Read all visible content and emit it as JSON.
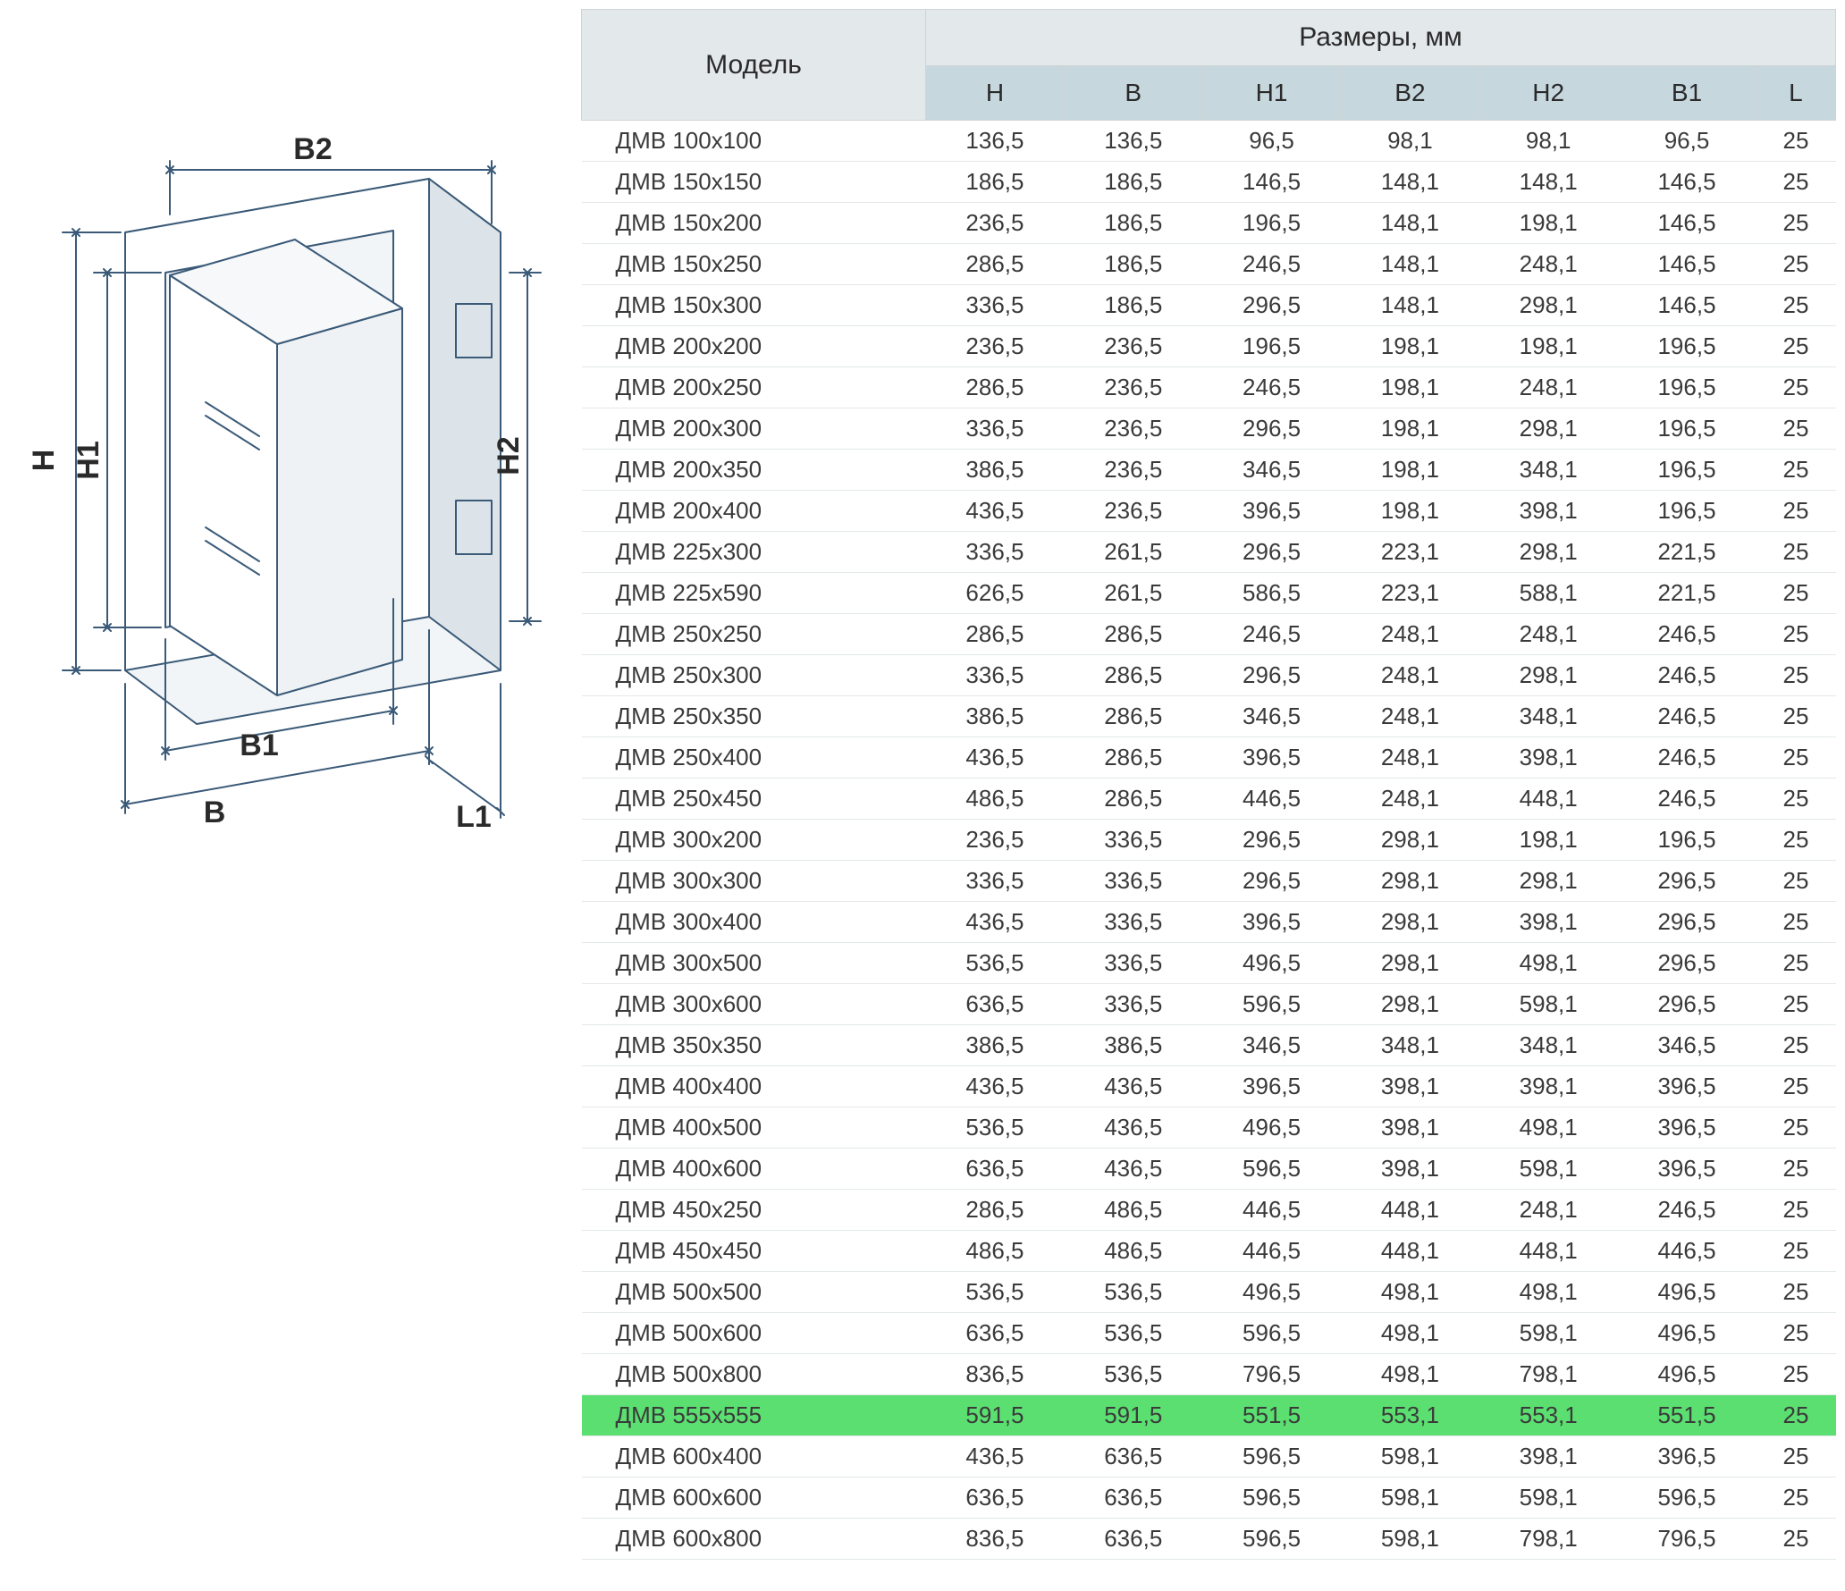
{
  "table": {
    "header_model": "Модель",
    "header_dims": "Размеры, мм",
    "columns": [
      "H",
      "B",
      "H1",
      "B2",
      "H2",
      "B1",
      "L"
    ],
    "header_bg": "#e3e8ea",
    "subheader_bg": "#c6d7de",
    "row_border": "#e3e8ea",
    "highlight_bg": "#5bdf71",
    "text_color": "#3a3a3a",
    "body_fontsize": 26,
    "header_fontsize": 30,
    "highlight_row_index": 31,
    "rows": [
      {
        "m": "ДМВ 100х100",
        "v": [
          "136,5",
          "136,5",
          "96,5",
          "98,1",
          "98,1",
          "96,5",
          "25"
        ]
      },
      {
        "m": "ДМВ 150х150",
        "v": [
          "186,5",
          "186,5",
          "146,5",
          "148,1",
          "148,1",
          "146,5",
          "25"
        ]
      },
      {
        "m": "ДМВ 150х200",
        "v": [
          "236,5",
          "186,5",
          "196,5",
          "148,1",
          "198,1",
          "146,5",
          "25"
        ]
      },
      {
        "m": "ДМВ 150х250",
        "v": [
          "286,5",
          "186,5",
          "246,5",
          "148,1",
          "248,1",
          "146,5",
          "25"
        ]
      },
      {
        "m": "ДМВ 150х300",
        "v": [
          "336,5",
          "186,5",
          "296,5",
          "148,1",
          "298,1",
          "146,5",
          "25"
        ]
      },
      {
        "m": "ДМВ 200х200",
        "v": [
          "236,5",
          "236,5",
          "196,5",
          "198,1",
          "198,1",
          "196,5",
          "25"
        ]
      },
      {
        "m": "ДМВ 200х250",
        "v": [
          "286,5",
          "236,5",
          "246,5",
          "198,1",
          "248,1",
          "196,5",
          "25"
        ]
      },
      {
        "m": "ДМВ 200х300",
        "v": [
          "336,5",
          "236,5",
          "296,5",
          "198,1",
          "298,1",
          "196,5",
          "25"
        ]
      },
      {
        "m": "ДМВ 200х350",
        "v": [
          "386,5",
          "236,5",
          "346,5",
          "198,1",
          "348,1",
          "196,5",
          "25"
        ]
      },
      {
        "m": "ДМВ 200х400",
        "v": [
          "436,5",
          "236,5",
          "396,5",
          "198,1",
          "398,1",
          "196,5",
          "25"
        ]
      },
      {
        "m": "ДМВ 225х300",
        "v": [
          "336,5",
          "261,5",
          "296,5",
          "223,1",
          "298,1",
          "221,5",
          "25"
        ]
      },
      {
        "m": "ДМВ 225х590",
        "v": [
          "626,5",
          "261,5",
          "586,5",
          "223,1",
          "588,1",
          "221,5",
          "25"
        ]
      },
      {
        "m": "ДМВ 250х250",
        "v": [
          "286,5",
          "286,5",
          "246,5",
          "248,1",
          "248,1",
          "246,5",
          "25"
        ]
      },
      {
        "m": "ДМВ 250х300",
        "v": [
          "336,5",
          "286,5",
          "296,5",
          "248,1",
          "298,1",
          "246,5",
          "25"
        ]
      },
      {
        "m": "ДМВ 250х350",
        "v": [
          "386,5",
          "286,5",
          "346,5",
          "248,1",
          "348,1",
          "246,5",
          "25"
        ]
      },
      {
        "m": "ДМВ 250х400",
        "v": [
          "436,5",
          "286,5",
          "396,5",
          "248,1",
          "398,1",
          "246,5",
          "25"
        ]
      },
      {
        "m": "ДМВ 250х450",
        "v": [
          "486,5",
          "286,5",
          "446,5",
          "248,1",
          "448,1",
          "246,5",
          "25"
        ]
      },
      {
        "m": "ДМВ 300х200",
        "v": [
          "236,5",
          "336,5",
          "296,5",
          "298,1",
          "198,1",
          "196,5",
          "25"
        ]
      },
      {
        "m": "ДМВ 300х300",
        "v": [
          "336,5",
          "336,5",
          "296,5",
          "298,1",
          "298,1",
          "296,5",
          "25"
        ]
      },
      {
        "m": "ДМВ 300х400",
        "v": [
          "436,5",
          "336,5",
          "396,5",
          "298,1",
          "398,1",
          "296,5",
          "25"
        ]
      },
      {
        "m": "ДМВ 300х500",
        "v": [
          "536,5",
          "336,5",
          "496,5",
          "298,1",
          "498,1",
          "296,5",
          "25"
        ]
      },
      {
        "m": "ДМВ 300х600",
        "v": [
          "636,5",
          "336,5",
          "596,5",
          "298,1",
          "598,1",
          "296,5",
          "25"
        ]
      },
      {
        "m": "ДМВ 350х350",
        "v": [
          "386,5",
          "386,5",
          "346,5",
          "348,1",
          "348,1",
          "346,5",
          "25"
        ]
      },
      {
        "m": "ДМВ 400х400",
        "v": [
          "436,5",
          "436,5",
          "396,5",
          "398,1",
          "398,1",
          "396,5",
          "25"
        ]
      },
      {
        "m": "ДМВ 400х500",
        "v": [
          "536,5",
          "436,5",
          "496,5",
          "398,1",
          "498,1",
          "396,5",
          "25"
        ]
      },
      {
        "m": "ДМВ 400х600",
        "v": [
          "636,5",
          "436,5",
          "596,5",
          "398,1",
          "598,1",
          "396,5",
          "25"
        ]
      },
      {
        "m": "ДМВ 450х250",
        "v": [
          "286,5",
          "486,5",
          "446,5",
          "448,1",
          "248,1",
          "246,5",
          "25"
        ]
      },
      {
        "m": "ДМВ 450х450",
        "v": [
          "486,5",
          "486,5",
          "446,5",
          "448,1",
          "448,1",
          "446,5",
          "25"
        ]
      },
      {
        "m": "ДМВ 500х500",
        "v": [
          "536,5",
          "536,5",
          "496,5",
          "498,1",
          "498,1",
          "496,5",
          "25"
        ]
      },
      {
        "m": "ДМВ 500х600",
        "v": [
          "636,5",
          "536,5",
          "596,5",
          "498,1",
          "598,1",
          "496,5",
          "25"
        ]
      },
      {
        "m": "ДМВ 500х800",
        "v": [
          "836,5",
          "536,5",
          "796,5",
          "498,1",
          "798,1",
          "496,5",
          "25"
        ]
      },
      {
        "m": "ДМВ 555х555",
        "v": [
          "591,5",
          "591,5",
          "551,5",
          "553,1",
          "553,1",
          "551,5",
          "25"
        ]
      },
      {
        "m": "ДМВ 600х400",
        "v": [
          "436,5",
          "636,5",
          "596,5",
          "598,1",
          "398,1",
          "396,5",
          "25"
        ]
      },
      {
        "m": "ДМВ 600х600",
        "v": [
          "636,5",
          "636,5",
          "596,5",
          "598,1",
          "598,1",
          "596,5",
          "25"
        ]
      },
      {
        "m": "ДМВ 600х800",
        "v": [
          "836,5",
          "636,5",
          "596,5",
          "598,1",
          "798,1",
          "796,5",
          "25"
        ]
      }
    ]
  },
  "diagram": {
    "labels": {
      "H": "H",
      "H1": "H1",
      "H2": "H2",
      "B": "B",
      "B1": "B1",
      "B2": "B2",
      "L1": "L1"
    },
    "line_color": "#3a5a78",
    "fill_light": "#f2f5f7",
    "fill_mid": "#dde4e9",
    "fill_dark": "#c2ccd3",
    "label_color": "#2a2a2a",
    "label_fontsize": 34,
    "stroke_width": 2
  }
}
